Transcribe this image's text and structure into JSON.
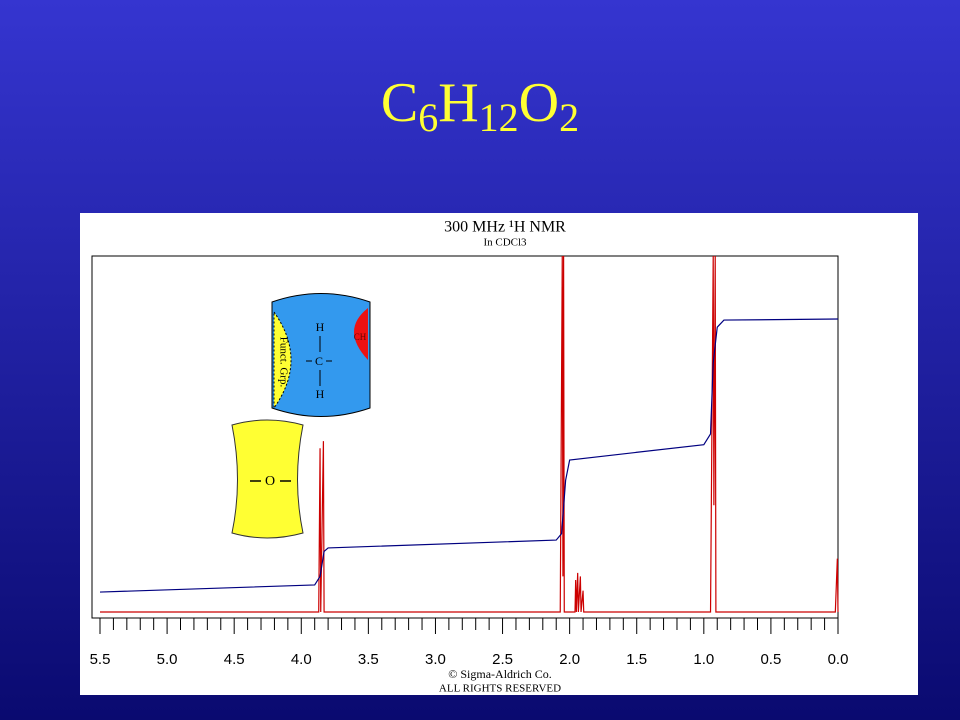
{
  "title": "C6H12O2",
  "chart_data": {
    "type": "line",
    "title": "300 MHz ¹H NMR",
    "subtitle": "In CDCl3",
    "xlim": [
      5.5,
      0
    ],
    "xticks": [
      5.5,
      {
        "value": 5,
        "label": "5.0"
      },
      4.5,
      {
        "value": 4,
        "label": "4.0"
      },
      3.5,
      {
        "value": 3,
        "label": "3.0"
      },
      2.5,
      {
        "value": 2,
        "label": "2.0"
      },
      1.5,
      {
        "value": 1,
        "label": "1.0"
      },
      0.5,
      {
        "value": 0,
        "label": "0.0"
      }
    ],
    "ylim": [
      0,
      100
    ],
    "series": [
      {
        "color": "#cc0000",
        "x": [
          5.5,
          3.87,
          3.86,
          3.855,
          3.835,
          3.83,
          2.07,
          2.055,
          2.05,
          2.045,
          2.04,
          1.96,
          1.955,
          1.95,
          1.94,
          1.935,
          1.92,
          1.915,
          1.9,
          1.895,
          0.95,
          0.93,
          0.925,
          0.915,
          0.91,
          0.02,
          0.005,
          0
        ],
        "values": [
          0,
          0,
          46,
          0,
          48,
          0,
          0,
          100,
          10,
          100,
          0,
          0,
          9,
          0,
          11,
          0,
          10,
          0,
          6,
          0,
          0,
          100,
          30,
          100,
          0,
          0,
          15,
          0
        ]
      },
      {
        "color": "#000080",
        "x": [
          5.5,
          3.9,
          3.86,
          3.83,
          3.8,
          2.1,
          2.06,
          2.03,
          2.0,
          1.0,
          0.95,
          0.93,
          0.9,
          0.85,
          0
        ],
        "values": [
          5.6,
          7.6,
          10,
          17,
          18,
          20.2,
          22,
          37,
          42.7,
          47,
          50,
          70,
          80,
          82,
          82.3
        ]
      }
    ],
    "annotations": [
      "Funct. Grp.",
      "H",
      "C",
      "H",
      "CH",
      "O"
    ]
  },
  "credits": [
    "© Sigma-Aldrich Co.",
    "ALL RIGHTS RESERVED"
  ]
}
